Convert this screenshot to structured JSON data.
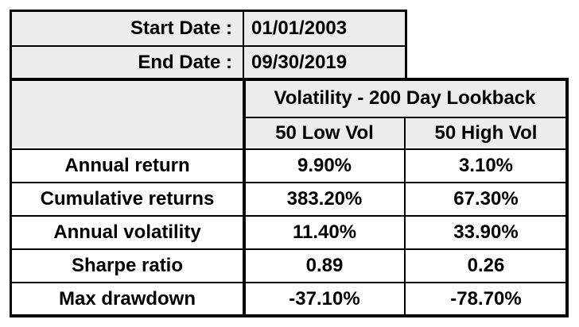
{
  "dates": {
    "start_label": "Start Date :",
    "start_value": "01/01/2003",
    "end_label": "End Date :",
    "end_value": "09/30/2019"
  },
  "table": {
    "group_header": "Volatility - 200 Day Lookback",
    "columns": [
      "50 Low Vol",
      "50 High Vol"
    ],
    "rows": [
      {
        "label": "Annual return",
        "low": "9.90%",
        "high": "3.10%"
      },
      {
        "label": "Cumulative returns",
        "low": "383.20%",
        "high": "67.30%"
      },
      {
        "label": "Annual volatility",
        "low": "11.40%",
        "high": "33.90%"
      },
      {
        "label": "Sharpe ratio",
        "low": "0.89",
        "high": "0.26"
      },
      {
        "label": "Max drawdown",
        "low": "-37.10%",
        "high": "-78.70%"
      }
    ]
  },
  "colors": {
    "header_bg": "#ededed",
    "border": "#000000",
    "cell_bg": "#ffffff"
  }
}
